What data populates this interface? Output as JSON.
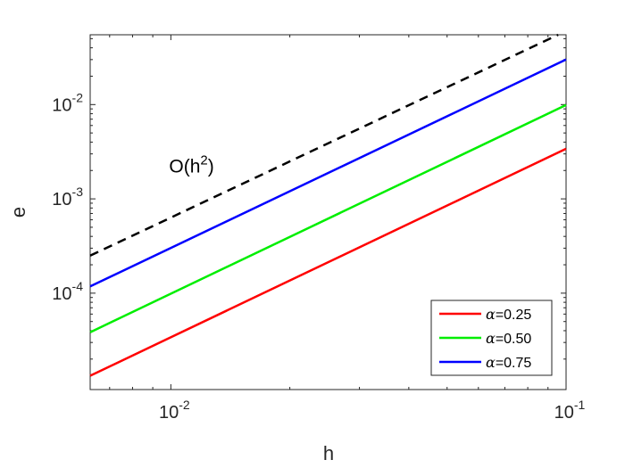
{
  "chart_data": {
    "type": "line",
    "xscale": "log",
    "yscale": "log",
    "xlim": [
      0.00625,
      0.1
    ],
    "ylim": [
      9.5e-06,
      0.055
    ],
    "xlabel": "h",
    "ylabel": "e",
    "grid": false,
    "legend_position": "bottom-right",
    "x_ticks": [
      {
        "value": 0.01,
        "base": "10",
        "exp": "-2"
      },
      {
        "value": 0.1,
        "base": "10",
        "exp": "-1"
      }
    ],
    "y_ticks": [
      {
        "value": 0.0001,
        "base": "10",
        "exp": "-4"
      },
      {
        "value": 0.001,
        "base": "10",
        "exp": "-3"
      },
      {
        "value": 0.01,
        "base": "10",
        "exp": "-2"
      }
    ],
    "series": [
      {
        "name": "α=0.25",
        "legend_symbol": "α",
        "legend_value": "=0.25",
        "color": "#ff0000",
        "dashed": false,
        "x": [
          0.00625,
          0.1
        ],
        "y": [
          1.33e-05,
          0.0034
        ]
      },
      {
        "name": "α=0.50",
        "legend_symbol": "α",
        "legend_value": "=0.50",
        "color": "#00ee00",
        "dashed": false,
        "x": [
          0.00625,
          0.1
        ],
        "y": [
          3.85e-05,
          0.0099
        ]
      },
      {
        "name": "α=0.75",
        "legend_symbol": "α",
        "legend_value": "=0.75",
        "color": "#0000ff",
        "dashed": false,
        "x": [
          0.00625,
          0.1
        ],
        "y": [
          0.000118,
          0.03
        ]
      },
      {
        "name": "O(h2)",
        "color": "#000000",
        "dashed": true,
        "in_legend": false,
        "x": [
          0.00625,
          0.0955
        ],
        "y": [
          0.00025,
          0.055
        ]
      }
    ],
    "annotation": {
      "base": "O(h",
      "sup": "2",
      "tail": ")",
      "x": 0.0099,
      "y": 0.0019
    }
  }
}
